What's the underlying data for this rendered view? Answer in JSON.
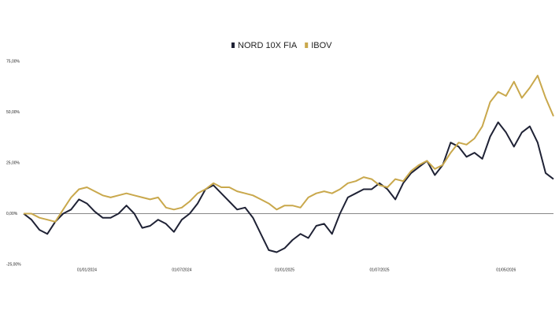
{
  "chart_data": {
    "type": "line",
    "categories": [
      null,
      null,
      null,
      null,
      null,
      null,
      null,
      null,
      "01/01/2024",
      null,
      null,
      null,
      null,
      null,
      null,
      null,
      null,
      null,
      null,
      null,
      "01/07/2024",
      null,
      null,
      null,
      null,
      null,
      null,
      null,
      null,
      null,
      null,
      null,
      null,
      "01/01/2025",
      null,
      null,
      null,
      null,
      null,
      null,
      null,
      null,
      null,
      null,
      null,
      "01/07/2025",
      null,
      null,
      null,
      null,
      null,
      null,
      null,
      null,
      null,
      null,
      null,
      null,
      null,
      null,
      null,
      "01/05/2026",
      null,
      null,
      null,
      null,
      null,
      null
    ],
    "series": [
      {
        "name": "NORD 10X FIA",
        "color": "#1f2235",
        "values": [
          0,
          -3,
          -8,
          -10,
          -4,
          0,
          2,
          7,
          5,
          1,
          -2,
          -2,
          0,
          4,
          0,
          -7,
          -6,
          -3,
          -5,
          -9,
          -3,
          0,
          5,
          12,
          14,
          10,
          6,
          2,
          3,
          -2,
          -10,
          -18,
          -19,
          -17,
          -13,
          -10,
          -12,
          -6,
          -5,
          -10,
          0,
          8,
          10,
          12,
          12,
          15,
          12,
          7,
          15,
          20,
          23,
          26,
          19,
          24,
          35,
          33,
          28,
          30,
          27,
          38,
          45,
          40,
          33,
          40,
          43,
          35,
          20,
          17
        ]
      },
      {
        "name": "IBOV",
        "color": "#c9a84c",
        "values": [
          0,
          0,
          -2,
          -3,
          -4,
          2,
          8,
          12,
          13,
          11,
          9,
          8,
          9,
          10,
          9,
          8,
          7,
          8,
          3,
          2,
          3,
          6,
          10,
          12,
          15,
          13,
          13,
          11,
          10,
          9,
          7,
          5,
          2,
          4,
          4,
          3,
          8,
          10,
          11,
          10,
          12,
          15,
          16,
          18,
          17,
          14,
          13,
          17,
          16,
          21,
          24,
          26,
          22,
          24,
          30,
          35,
          34,
          37,
          43,
          55,
          60,
          58,
          65,
          57,
          62,
          68,
          57,
          48
        ]
      }
    ],
    "ylim": [
      -25,
      75
    ],
    "yticks": [
      {
        "value": -25,
        "label": "-25,00%"
      },
      {
        "value": 0,
        "label": "0,00%"
      },
      {
        "value": 25,
        "label": "25,00%"
      },
      {
        "value": 50,
        "label": "50,00%"
      },
      {
        "value": 75,
        "label": "75,00%"
      }
    ],
    "grid": false
  }
}
